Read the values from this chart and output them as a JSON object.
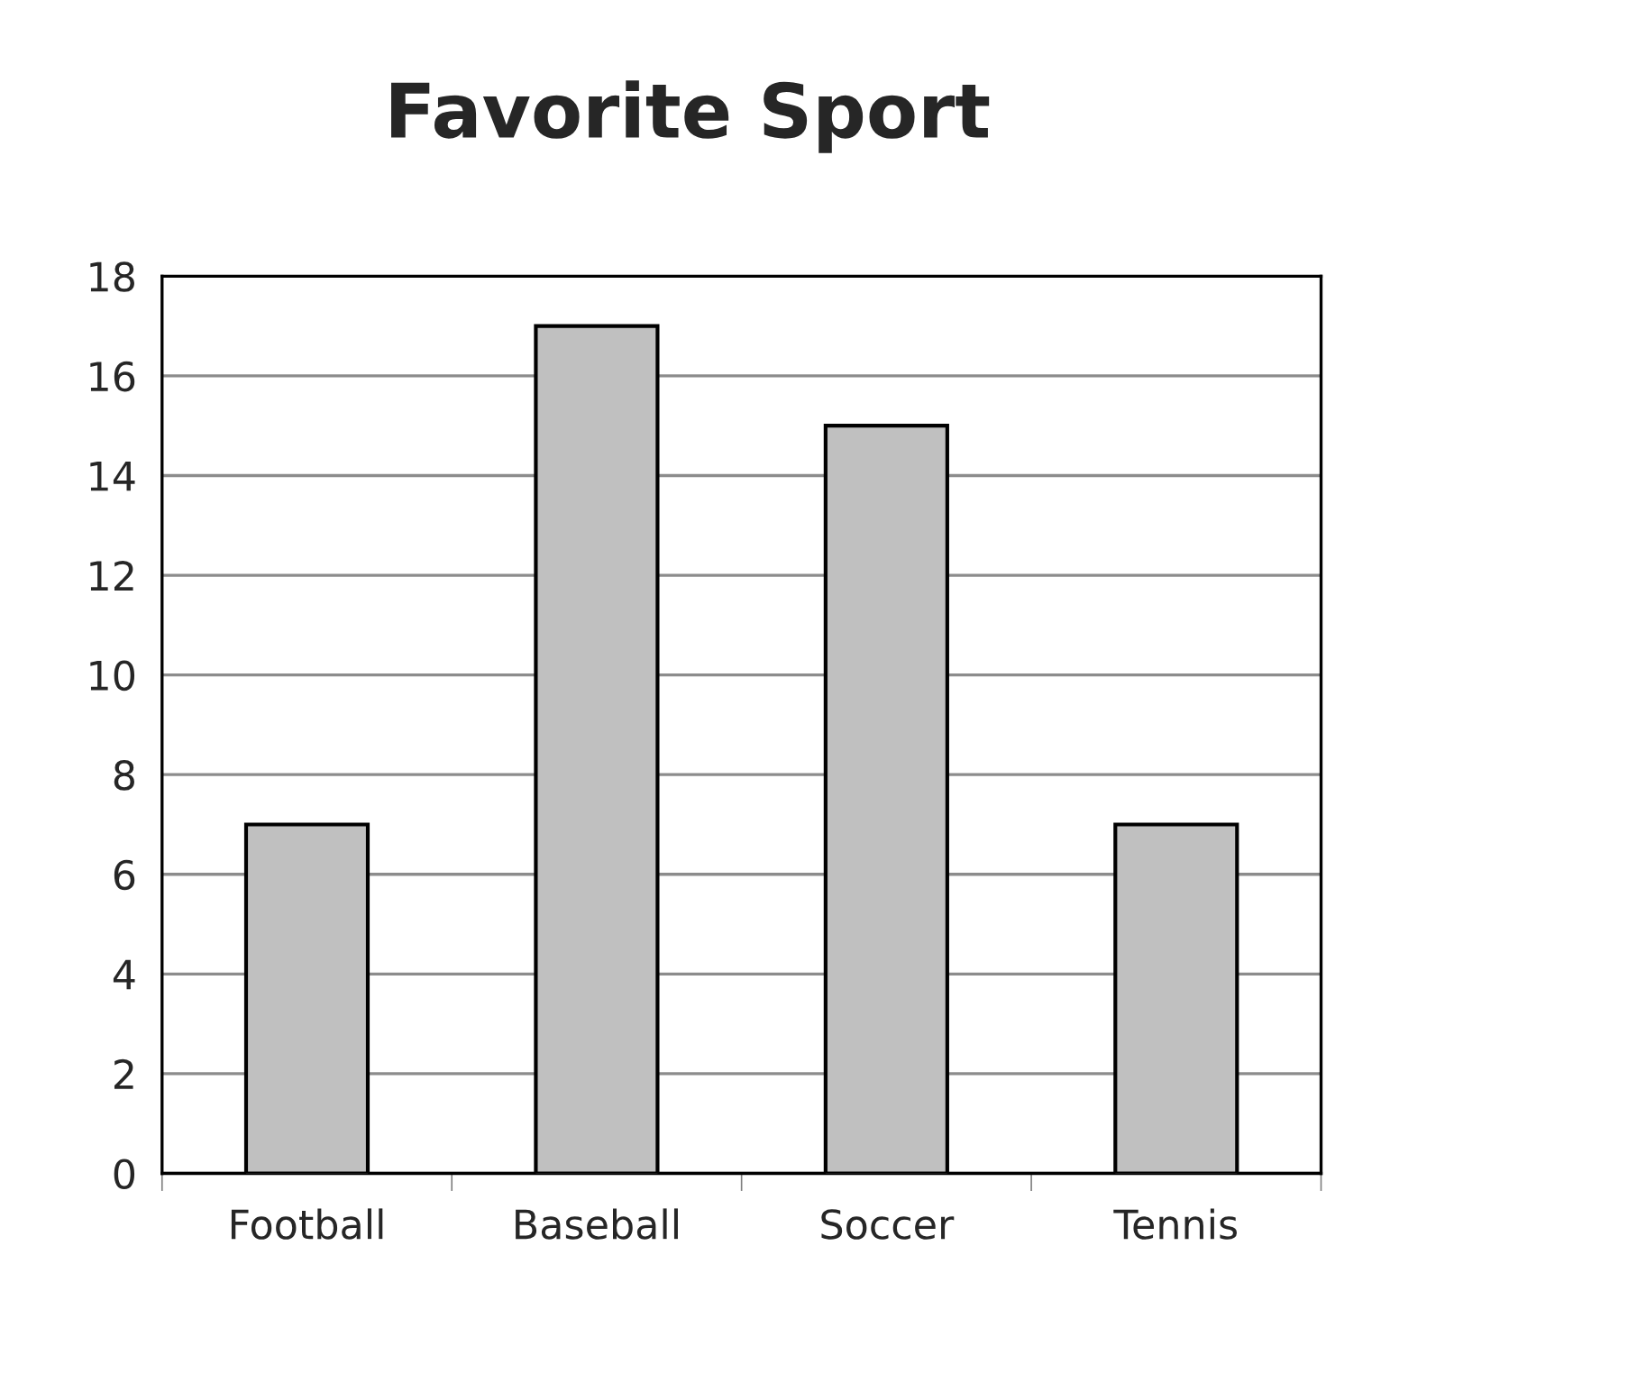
{
  "chart_data": {
    "type": "bar",
    "title": "Favorite Sport",
    "categories": [
      "Football",
      "Baseball",
      "Soccer",
      "Tennis"
    ],
    "values": [
      7,
      17,
      15,
      7
    ],
    "color": "#c0c0c0",
    "ylim": [
      0,
      18
    ],
    "yticks": [
      0,
      2,
      4,
      6,
      8,
      10,
      12,
      14,
      16,
      18
    ],
    "grid": "y",
    "legend": false
  }
}
